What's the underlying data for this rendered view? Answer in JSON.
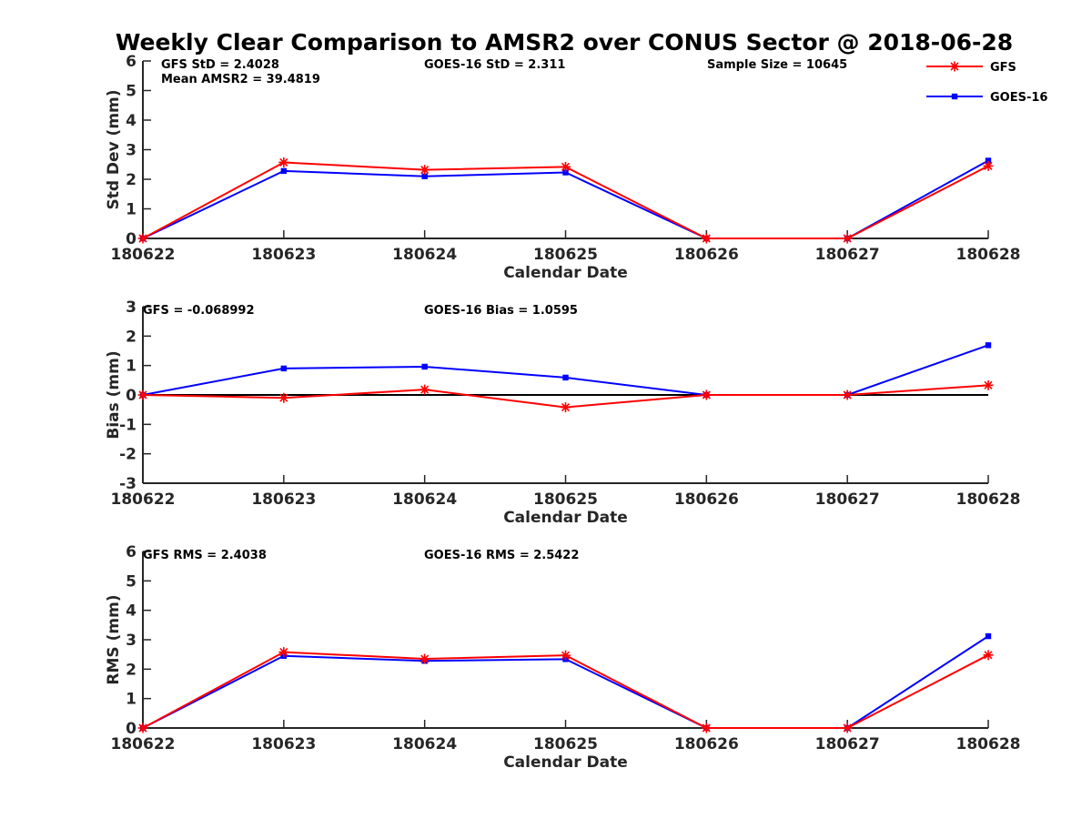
{
  "title": "Weekly Clear Comparison to AMSR2 over CONUS Sector @ 2018-06-28",
  "legend": [
    {
      "name": "GFS",
      "color": "#ff0000",
      "marker": "asterisk"
    },
    {
      "name": "GOES-16",
      "color": "#0000ff",
      "marker": "square"
    }
  ],
  "chart_data": [
    {
      "type": "line",
      "ylabel": "Std Dev (mm)",
      "xlabel": "Calendar Date",
      "categories": [
        "180622",
        "180623",
        "180624",
        "180625",
        "180626",
        "180627",
        "180628"
      ],
      "ylim": [
        0,
        6
      ],
      "yticks": [
        "0",
        "1",
        "2",
        "3",
        "4",
        "5",
        "6"
      ],
      "annotations": [
        "GFS StD = 2.4028",
        "Mean AMSR2 = 39.4819",
        "GOES-16 StD = 2.311",
        "Sample Size = 10645"
      ],
      "series": [
        {
          "name": "GFS",
          "values": [
            0,
            2.57,
            2.32,
            2.42,
            0,
            0,
            2.45
          ]
        },
        {
          "name": "GOES-16",
          "values": [
            0,
            2.28,
            2.1,
            2.23,
            0,
            0,
            2.63
          ]
        }
      ]
    },
    {
      "type": "line",
      "ylabel": "Bias (mm)",
      "xlabel": "Calendar Date",
      "categories": [
        "180622",
        "180623",
        "180624",
        "180625",
        "180626",
        "180627",
        "180628"
      ],
      "ylim": [
        -3,
        3
      ],
      "yticks": [
        "-3",
        "-2",
        "-1",
        "0",
        "1",
        "2",
        "3"
      ],
      "zero_line": true,
      "annotations": [
        "GFS = -0.068992",
        "GOES-16 Bias  = 1.0595"
      ],
      "series": [
        {
          "name": "GFS",
          "values": [
            0,
            -0.1,
            0.18,
            -0.42,
            0,
            0,
            0.33
          ]
        },
        {
          "name": "GOES-16",
          "values": [
            0,
            0.9,
            0.96,
            0.59,
            0,
            0,
            1.69
          ]
        }
      ]
    },
    {
      "type": "line",
      "ylabel": "RMS (mm)",
      "xlabel": "Calendar Date",
      "categories": [
        "180622",
        "180623",
        "180624",
        "180625",
        "180626",
        "180627",
        "180628"
      ],
      "ylim": [
        0,
        6
      ],
      "yticks": [
        "0",
        "1",
        "2",
        "3",
        "4",
        "5",
        "6"
      ],
      "annotations": [
        "GFS RMS = 2.4038",
        "GOES-16 RMS = 2.5422"
      ],
      "series": [
        {
          "name": "GFS",
          "values": [
            0,
            2.58,
            2.35,
            2.47,
            0,
            0,
            2.48
          ]
        },
        {
          "name": "GOES-16",
          "values": [
            0,
            2.45,
            2.28,
            2.34,
            0,
            0,
            3.12
          ]
        }
      ]
    }
  ]
}
